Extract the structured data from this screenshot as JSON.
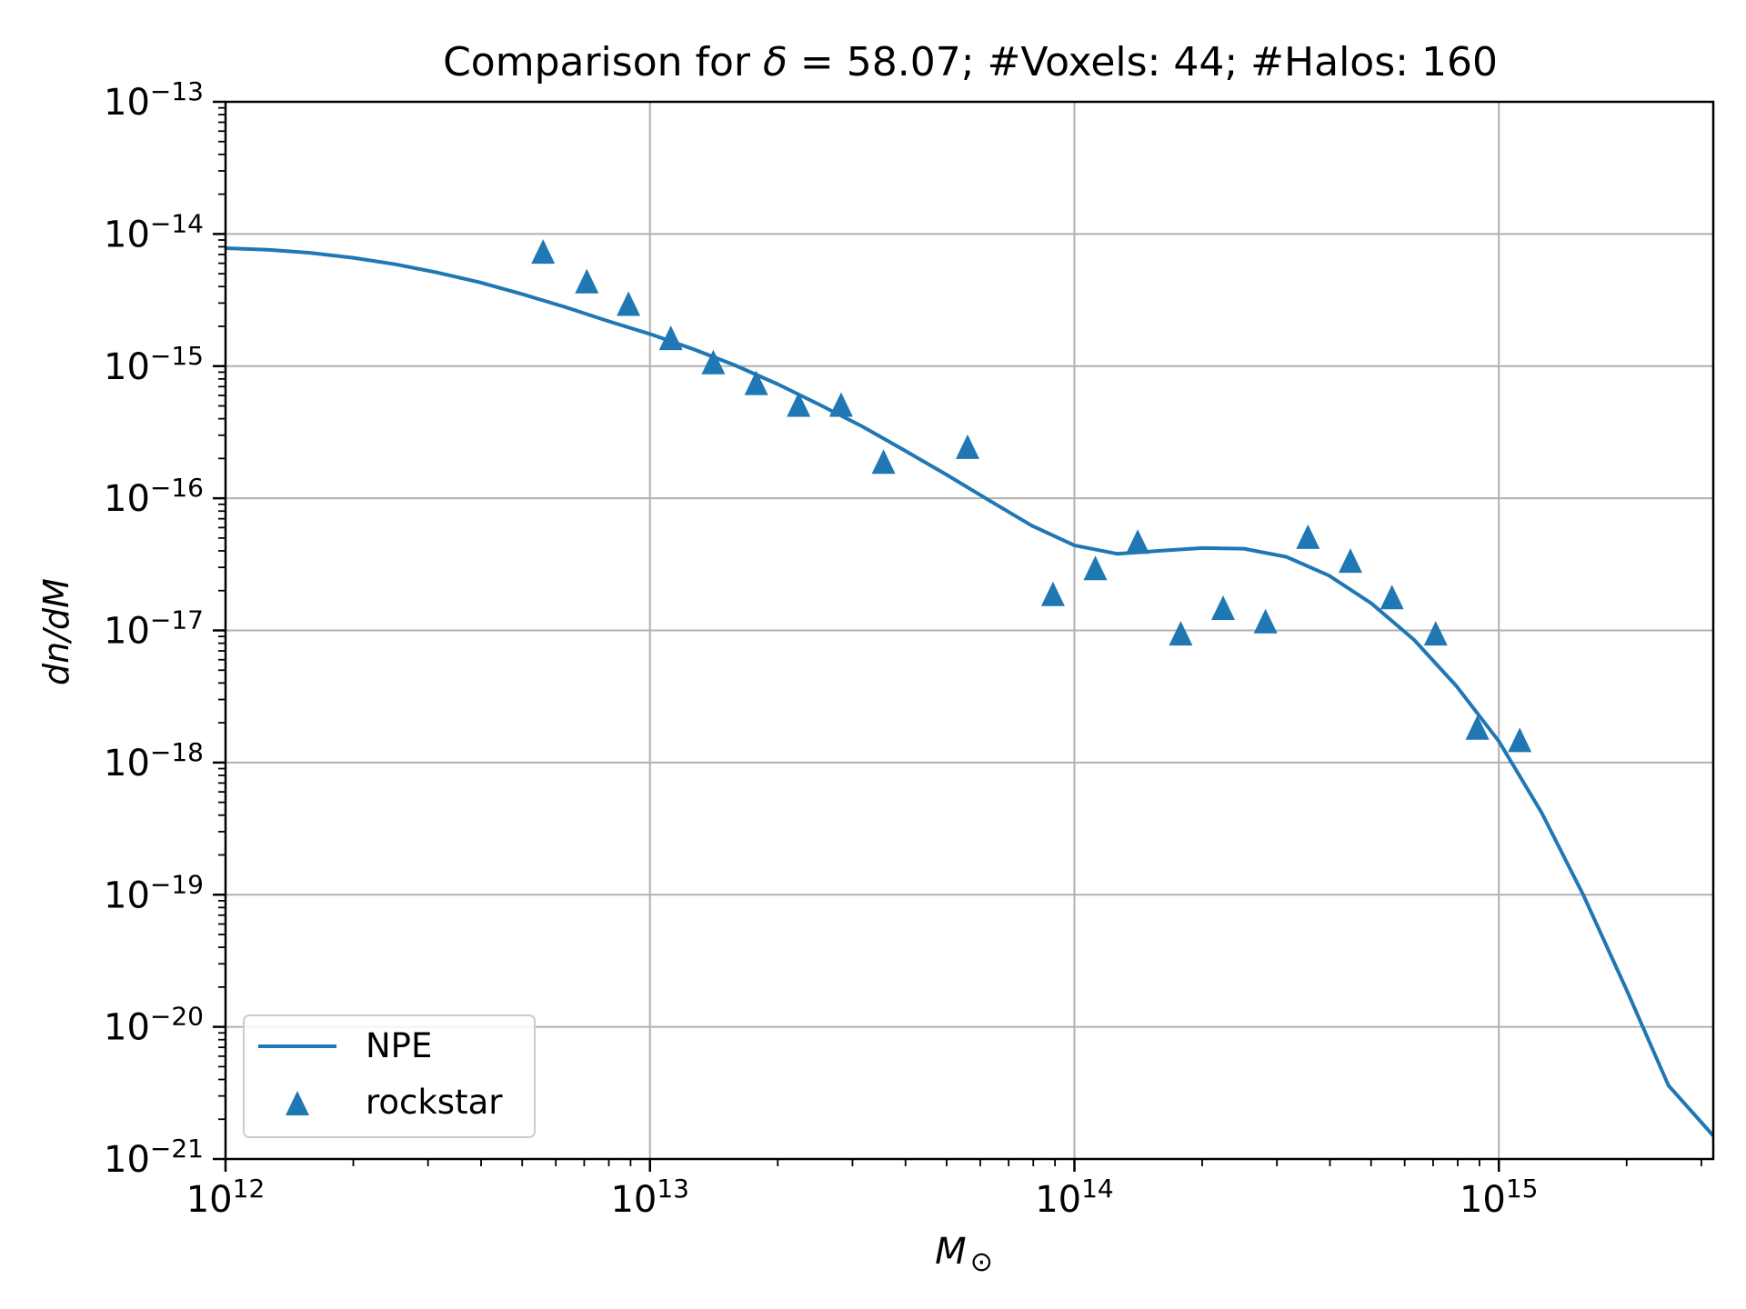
{
  "chart_data": {
    "type": "line",
    "title": {
      "prefix": "Comparison for ",
      "delta_symbol": "δ",
      "eq": " = ",
      "delta_value": "58.07",
      "rest": "; #Voxels: 44; #Halos: 160"
    },
    "xlabel": {
      "symbol": "M",
      "subscript": "⊙"
    },
    "ylabel": "dn/dM",
    "x_scale": "log",
    "y_scale": "log",
    "xlim": [
      1000000000000.0,
      3200000000000000.0
    ],
    "ylim": [
      1e-21,
      1e-13
    ],
    "grid": true,
    "legend_placement": "lower-left",
    "x_ticks": [
      {
        "value": 1000000000000.0,
        "base": "10",
        "exp": "12"
      },
      {
        "value": 10000000000000.0,
        "base": "10",
        "exp": "13"
      },
      {
        "value": 100000000000000.0,
        "base": "10",
        "exp": "14"
      },
      {
        "value": 1000000000000000.0,
        "base": "10",
        "exp": "15"
      }
    ],
    "y_ticks": [
      {
        "value": 1e-13,
        "base": "10",
        "exp": "−13"
      },
      {
        "value": 1e-14,
        "base": "10",
        "exp": "−14"
      },
      {
        "value": 1e-15,
        "base": "10",
        "exp": "−15"
      },
      {
        "value": 1e-16,
        "base": "10",
        "exp": "−16"
      },
      {
        "value": 1e-17,
        "base": "10",
        "exp": "−17"
      },
      {
        "value": 1e-18,
        "base": "10",
        "exp": "−18"
      },
      {
        "value": 1e-19,
        "base": "10",
        "exp": "−19"
      },
      {
        "value": 1e-20,
        "base": "10",
        "exp": "−20"
      },
      {
        "value": 1e-21,
        "base": "10",
        "exp": "−21"
      }
    ],
    "series": [
      {
        "name": "NPE",
        "type": "line",
        "color": "#1f77b4",
        "points": [
          [
            1000000000000.0,
            7.8e-15
          ],
          [
            1260000000000.0,
            7.6e-15
          ],
          [
            1580000000000.0,
            7.2e-15
          ],
          [
            2000000000000.0,
            6.6e-15
          ],
          [
            2510000000000.0,
            5.9e-15
          ],
          [
            3160000000000.0,
            5.1e-15
          ],
          [
            3980000000000.0,
            4.3e-15
          ],
          [
            5010000000000.0,
            3.5e-15
          ],
          [
            6310000000000.0,
            2.8e-15
          ],
          [
            7940000000000.0,
            2.2e-15
          ],
          [
            10000000000000.0,
            1.75e-15
          ],
          [
            12600000000000.0,
            1.35e-15
          ],
          [
            15800000000000.0,
            1.02e-15
          ],
          [
            20000000000000.0,
            7.3e-16
          ],
          [
            25100000000000.0,
            5.1e-16
          ],
          [
            31600000000000.0,
            3.5e-16
          ],
          [
            39800000000000.0,
            2.3e-16
          ],
          [
            50100000000000.0,
            1.5e-16
          ],
          [
            63100000000000.0,
            9.6e-17
          ],
          [
            79400000000000.0,
            6.2e-17
          ],
          [
            100000000000000.0,
            4.4e-17
          ],
          [
            126000000000000.0,
            3.8e-17
          ],
          [
            158000000000000.0,
            4e-17
          ],
          [
            200000000000000.0,
            4.2e-17
          ],
          [
            251000000000000.0,
            4.15e-17
          ],
          [
            316000000000000.0,
            3.6e-17
          ],
          [
            398000000000000.0,
            2.6e-17
          ],
          [
            501000000000000.0,
            1.6e-17
          ],
          [
            631000000000000.0,
            8.5e-18
          ],
          [
            794000000000000.0,
            3.8e-18
          ],
          [
            1000000000000000.0,
            1.45e-18
          ],
          [
            1260000000000000.0,
            4.2e-19
          ],
          [
            1580000000000000.0,
            1e-19
          ],
          [
            2000000000000000.0,
            1.9e-20
          ],
          [
            2510000000000000.0,
            3.6e-21
          ],
          [
            3200000000000000.0,
            1.5e-21
          ]
        ]
      },
      {
        "name": "rockstar",
        "type": "scatter",
        "marker": "triangle-up",
        "color": "#1f77b4",
        "points": [
          [
            5600000000000.0,
            7.2e-15
          ],
          [
            7100000000000.0,
            4.3e-15
          ],
          [
            8900000000000.0,
            2.9e-15
          ],
          [
            11200000000000.0,
            1.6e-15
          ],
          [
            14100000000000.0,
            1.05e-15
          ],
          [
            17800000000000.0,
            7.3e-16
          ],
          [
            22400000000000.0,
            5e-16
          ],
          [
            28200000000000.0,
            5e-16
          ],
          [
            35500000000000.0,
            1.85e-16
          ],
          [
            56000000000000.0,
            2.4e-16
          ],
          [
            89000000000000.0,
            1.85e-17
          ],
          [
            112000000000000.0,
            2.9e-17
          ],
          [
            141000000000000.0,
            4.6e-17
          ],
          [
            178000000000000.0,
            9.3e-18
          ],
          [
            224000000000000.0,
            1.45e-17
          ],
          [
            282000000000000.0,
            1.15e-17
          ],
          [
            355000000000000.0,
            5e-17
          ],
          [
            447000000000000.0,
            3.3e-17
          ],
          [
            560000000000000.0,
            1.75e-17
          ],
          [
            710000000000000.0,
            9.3e-18
          ],
          [
            890000000000000.0,
            1.8e-18
          ],
          [
            1120000000000000.0,
            1.45e-18
          ]
        ]
      }
    ]
  }
}
